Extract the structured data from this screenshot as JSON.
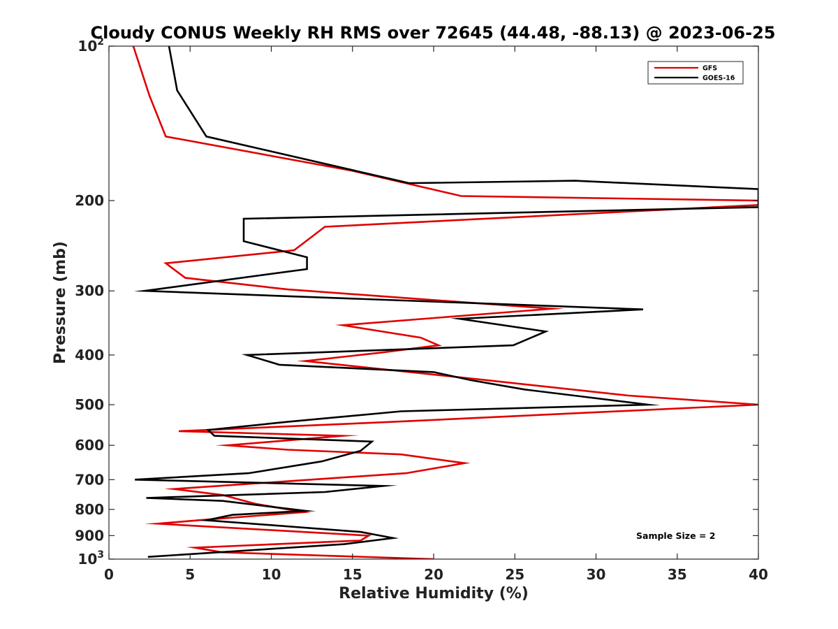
{
  "chart_data": {
    "type": "line",
    "title": "Cloudy CONUS Weekly RH RMS over 72645 (44.48, -88.13) @ 2023-06-25",
    "xlabel": "Relative Humidity (%)",
    "ylabel": "Pressure (mb)",
    "xlim": [
      0,
      40
    ],
    "ylim": [
      100,
      1000
    ],
    "y_scale": "log",
    "y_reversed": true,
    "xticks": [
      0,
      5,
      10,
      15,
      20,
      25,
      30,
      35,
      40
    ],
    "xtick_labels": [
      "0",
      "5",
      "10",
      "15",
      "20",
      "25",
      "30",
      "35",
      "40"
    ],
    "yticks": [
      100,
      200,
      300,
      400,
      500,
      600,
      700,
      800,
      900,
      1000
    ],
    "ytick_labels": [
      "10^2",
      "200",
      "300",
      "400",
      "500",
      "600",
      "700",
      "800",
      "900",
      "10^3"
    ],
    "grid": false,
    "legend_position": "top-right",
    "annotation": "Sample Size = 2",
    "series": [
      {
        "name": "GFS",
        "color": "#e00000",
        "points": [
          [
            1.5,
            100
          ],
          [
            2.5,
            125
          ],
          [
            3.5,
            150
          ],
          [
            15.0,
            175
          ],
          [
            21.7,
            196
          ],
          [
            40.0,
            200
          ],
          [
            40.0,
            204
          ],
          [
            13.3,
            225
          ],
          [
            11.4,
            250
          ],
          [
            3.5,
            265
          ],
          [
            4.7,
            283
          ],
          [
            11.0,
            298
          ],
          [
            27.3,
            325
          ],
          [
            14.4,
            350
          ],
          [
            19.2,
            370
          ],
          [
            20.3,
            383
          ],
          [
            16.7,
            396
          ],
          [
            12.1,
            411
          ],
          [
            23.0,
            447
          ],
          [
            32.0,
            480
          ],
          [
            40.0,
            500
          ],
          [
            17.5,
            540
          ],
          [
            4.3,
            563
          ],
          [
            14.4,
            575
          ],
          [
            7.3,
            600
          ],
          [
            11.0,
            612
          ],
          [
            18.0,
            625
          ],
          [
            21.9,
            650
          ],
          [
            18.3,
            680
          ],
          [
            13.0,
            698
          ],
          [
            4.0,
            730
          ],
          [
            7.0,
            750
          ],
          [
            9.0,
            780
          ],
          [
            12.0,
            810
          ],
          [
            5.5,
            840
          ],
          [
            3.0,
            853
          ],
          [
            16.0,
            900
          ],
          [
            15.5,
            920
          ],
          [
            5.3,
            950
          ],
          [
            7.0,
            970
          ],
          [
            20.0,
            1000
          ]
        ]
      },
      {
        "name": "GOES-16",
        "color": "#000000",
        "points": [
          [
            3.7,
            100
          ],
          [
            4.2,
            122
          ],
          [
            6.0,
            150
          ],
          [
            18.5,
            185
          ],
          [
            28.7,
            183
          ],
          [
            40.0,
            190
          ],
          [
            40.0,
            206
          ],
          [
            8.3,
            217
          ],
          [
            8.3,
            240
          ],
          [
            12.2,
            258
          ],
          [
            12.2,
            272
          ],
          [
            2.2,
            300
          ],
          [
            32.9,
            326
          ],
          [
            21.6,
            340
          ],
          [
            26.9,
            360
          ],
          [
            24.9,
            383
          ],
          [
            8.5,
            400
          ],
          [
            10.5,
            418
          ],
          [
            20.0,
            432
          ],
          [
            22.3,
            448
          ],
          [
            25.6,
            467
          ],
          [
            33.2,
            500
          ],
          [
            18.0,
            515
          ],
          [
            11.0,
            540
          ],
          [
            6.1,
            560
          ],
          [
            6.5,
            575
          ],
          [
            16.2,
            590
          ],
          [
            15.5,
            615
          ],
          [
            13.1,
            645
          ],
          [
            8.6,
            680
          ],
          [
            1.6,
            700
          ],
          [
            16.9,
            720
          ],
          [
            13.3,
            740
          ],
          [
            2.3,
            760
          ],
          [
            7.0,
            770
          ],
          [
            12.1,
            805
          ],
          [
            7.6,
            820
          ],
          [
            6.0,
            840
          ],
          [
            15.5,
            885
          ],
          [
            17.5,
            910
          ],
          [
            14.5,
            935
          ],
          [
            2.4,
            990
          ]
        ]
      }
    ]
  }
}
